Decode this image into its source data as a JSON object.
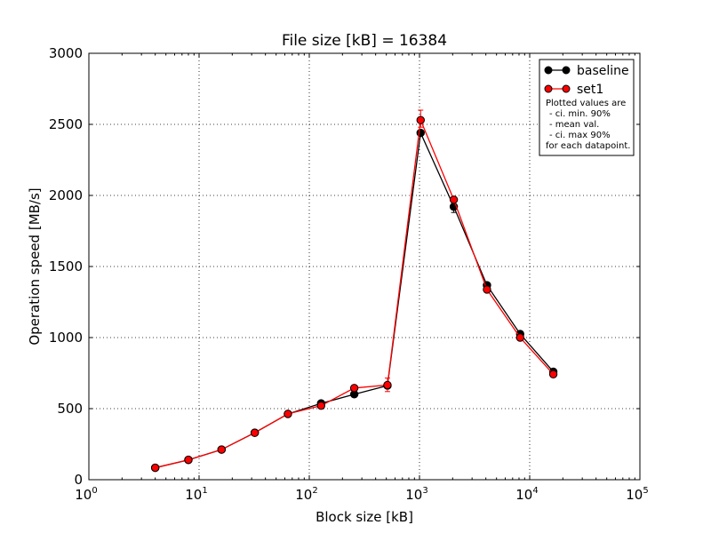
{
  "chart_data": {
    "type": "line",
    "title": "File size [kB] = 16384",
    "xlabel": "Block size [kB]",
    "ylabel": "Operation speed [MB/s]",
    "x_scale": "log",
    "xlim": [
      1,
      100000
    ],
    "ylim": [
      0,
      3000
    ],
    "grid": true,
    "legend_position": "top-right",
    "x_ticks": [
      {
        "base": "10",
        "exp": "0"
      },
      {
        "base": "10",
        "exp": "1"
      },
      {
        "base": "10",
        "exp": "2"
      },
      {
        "base": "10",
        "exp": "3"
      },
      {
        "base": "10",
        "exp": "4"
      },
      {
        "base": "10",
        "exp": "5"
      }
    ],
    "y_ticks": [
      "0",
      "500",
      "1000",
      "1500",
      "2000",
      "2500",
      "3000"
    ],
    "x": [
      4,
      8,
      16,
      32,
      64,
      128,
      256,
      512,
      1024,
      2048,
      4096,
      8192,
      16384
    ],
    "series": [
      {
        "name": "baseline",
        "color": "#000000",
        "values": [
          84,
          139,
          212,
          331,
          463,
          537,
          601,
          662,
          2440,
          1921,
          1368,
          1025,
          760
        ],
        "err_low": [
          84,
          139,
          212,
          331,
          463,
          537,
          601,
          662,
          2440,
          1880,
          1368,
          1025,
          760
        ],
        "err_high": [
          84,
          139,
          212,
          331,
          463,
          537,
          601,
          662,
          2440,
          1921,
          1368,
          1025,
          760
        ]
      },
      {
        "name": "set1",
        "color": "#ff0000",
        "values": [
          84,
          140,
          212,
          330,
          463,
          521,
          645,
          666,
          2530,
          1970,
          1338,
          1000,
          742
        ],
        "err_low": [
          84,
          140,
          212,
          330,
          463,
          521,
          645,
          620,
          2480,
          1970,
          1338,
          1000,
          742
        ],
        "err_high": [
          84,
          140,
          212,
          330,
          463,
          521,
          645,
          715,
          2600,
          1970,
          1338,
          1000,
          742
        ]
      }
    ],
    "legend_note": [
      "Plotted values are",
      "- ci. min. 90%",
      "- mean val.",
      "- ci. max 90%",
      "for each datapoint."
    ]
  }
}
